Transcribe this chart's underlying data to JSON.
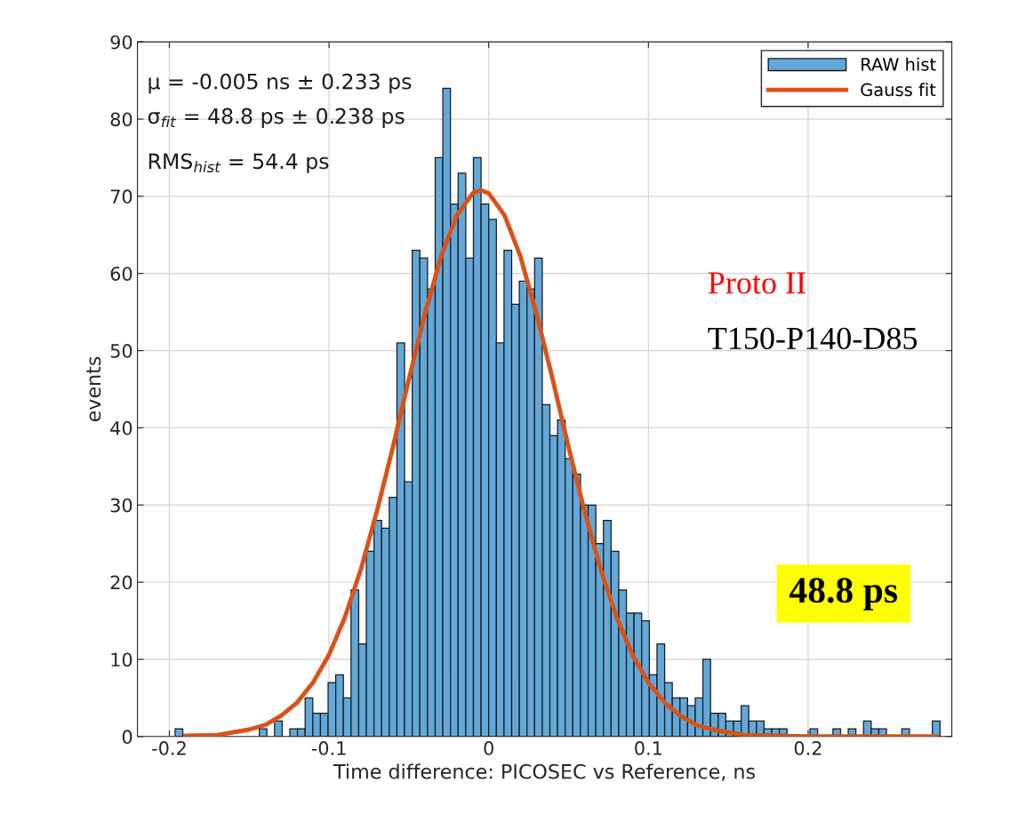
{
  "chart_data": {
    "type": "histogram",
    "xlabel": "Time difference: PICOSEC vs Reference, ns",
    "ylabel": "events",
    "xlim": [
      -0.22,
      0.29
    ],
    "xticks": [
      -0.2,
      -0.1,
      0,
      0.1,
      0.2
    ],
    "ylim": [
      0,
      90
    ],
    "yticks": [
      0,
      10,
      20,
      30,
      40,
      50,
      60,
      70,
      80,
      90
    ],
    "grid": true,
    "legend": "top right",
    "bins": [
      -0.1964,
      -0.19161,
      -0.18682,
      -0.18203,
      -0.17724,
      -0.17245,
      -0.16766,
      -0.16287,
      -0.15808,
      -0.15329,
      -0.1485,
      -0.14371,
      -0.13892,
      -0.13413,
      -0.12934,
      -0.12455,
      -0.11976,
      -0.11497,
      -0.11018,
      -0.10539,
      -0.1006,
      -0.09581,
      -0.09102,
      -0.08623,
      -0.08144,
      -0.07665,
      -0.07186,
      -0.06707,
      -0.06228,
      -0.05749,
      -0.0527,
      -0.04791,
      -0.04312,
      -0.03833,
      -0.03354,
      -0.02875,
      -0.02396,
      -0.01917,
      -0.01438,
      -0.00959,
      -0.0048,
      -1e-05,
      0.00478,
      0.00957,
      0.01436,
      0.01915,
      0.02394,
      0.02873,
      0.03352,
      0.03831,
      0.0431,
      0.04789,
      0.05268,
      0.05747,
      0.06226,
      0.06705,
      0.07184,
      0.07663,
      0.08142,
      0.08621,
      0.091,
      0.09579,
      0.10058,
      0.10537,
      0.11016,
      0.11495,
      0.11974,
      0.12453,
      0.12932,
      0.13411,
      0.1389,
      0.14369,
      0.14848,
      0.15327,
      0.15806,
      0.16285,
      0.16764,
      0.17243,
      0.17722,
      0.18201,
      0.1868,
      0.19159,
      0.19638,
      0.20117,
      0.20596,
      0.21075,
      0.21554,
      0.22033,
      0.22512,
      0.22991,
      0.2347,
      0.23949,
      0.24428,
      0.24907,
      0.25386,
      0.25865,
      0.26344,
      0.26823,
      0.27302,
      0.27781,
      0.2826
    ],
    "series": [
      {
        "name": "RAW hist",
        "color": "#62a8d9",
        "values": [
          1,
          0,
          0,
          0,
          0,
          0,
          0,
          0,
          0,
          0,
          0,
          1,
          0,
          2,
          0,
          1,
          1,
          5,
          3,
          3,
          7,
          8,
          5,
          19,
          12,
          24,
          28,
          27,
          31,
          51,
          33,
          63,
          62,
          58,
          75,
          84,
          69,
          73,
          62,
          75,
          69,
          67,
          51,
          63,
          56,
          59,
          58,
          62,
          43,
          39,
          41,
          36,
          34,
          30,
          30,
          25,
          28,
          24,
          19,
          16,
          16,
          15,
          8,
          12,
          7,
          5,
          5,
          4,
          5,
          10,
          3,
          3,
          2,
          2,
          4,
          2,
          2,
          1,
          1,
          1,
          0,
          0,
          0,
          1,
          0,
          0,
          1,
          0,
          1,
          0,
          2,
          1,
          1,
          0,
          0,
          1,
          0,
          0,
          0,
          2
        ]
      },
      {
        "name": "Gauss fit",
        "type": "line",
        "color": "#d95319",
        "x": [
          -0.19,
          -0.17,
          -0.15,
          -0.14,
          -0.13,
          -0.12,
          -0.11,
          -0.1,
          -0.09,
          -0.08,
          -0.07,
          -0.06,
          -0.05,
          -0.04,
          -0.03,
          -0.02,
          -0.01,
          -0.005,
          0,
          0.01,
          0.02,
          0.03,
          0.04,
          0.05,
          0.06,
          0.07,
          0.08,
          0.09,
          0.1,
          0.11,
          0.12,
          0.13,
          0.14,
          0.16,
          0.18,
          0.2,
          0.24,
          0.28
        ],
        "values": [
          0.1,
          0.2,
          0.9,
          1.5,
          2.7,
          4.4,
          7.0,
          10.6,
          15.5,
          21.7,
          29.2,
          37.5,
          46.3,
          54.7,
          62.1,
          67.5,
          70.4,
          70.8,
          70.4,
          67.5,
          62.1,
          54.7,
          46.3,
          37.5,
          29.2,
          21.7,
          15.5,
          10.6,
          7.0,
          4.4,
          2.7,
          1.5,
          0.9,
          0.2,
          0.1,
          0,
          0,
          0
        ]
      }
    ],
    "annotations": [
      "μ = -0.005 ns ± 0.233 ps",
      "σ$_{fit}$ = 48.8 ps ± 0.238 ps",
      "RMS$_{hist}$ = 54.4 ps",
      "Proto II",
      "T150-P140-D85",
      "48.8 ps"
    ]
  }
}
